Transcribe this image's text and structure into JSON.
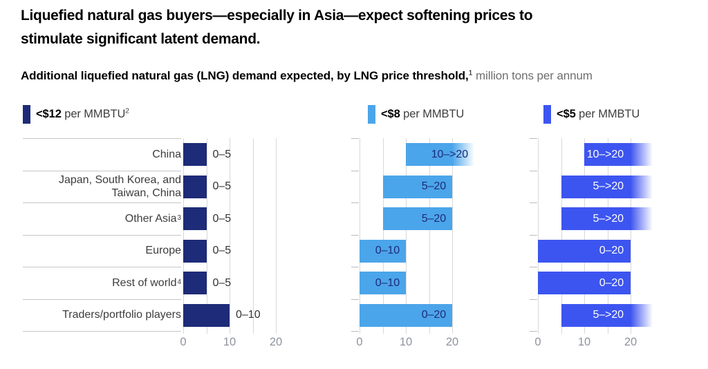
{
  "header": {
    "title_lines": [
      "Liquefied natural gas buyers—especially in Asia—expect softening prices to",
      "stimulate significant latent demand."
    ],
    "subtitle": {
      "bold": "Additional liquefied natural gas (LNG) demand expected, by LNG price threshold,",
      "sup": "1",
      "rest": " million tons per annum"
    }
  },
  "chart_data": {
    "type": "bar",
    "orientation": "horizontal",
    "unit": "million tons per annum",
    "x_ticks": [
      0,
      10,
      20
    ],
    "x_grid_step": 5,
    "x_max": 20,
    "grid": true,
    "categories": [
      {
        "label": "China",
        "sup": ""
      },
      {
        "label": "Japan, South Korea, and Taiwan, China",
        "sup": ""
      },
      {
        "label": "Other Asia",
        "sup": "3"
      },
      {
        "label": "Europe",
        "sup": ""
      },
      {
        "label": "Rest of world",
        "sup": "4"
      },
      {
        "label": "Traders/portfolio players",
        "sup": ""
      }
    ],
    "series": [
      {
        "name": "<$12 per MMBTU",
        "legend_bold": "<$12",
        "legend_rest": " per MMBTU",
        "legend_sup": "2",
        "color": "#1E2B78",
        "label_color": "#333333",
        "label_position": "outside",
        "bars": [
          {
            "from": 0,
            "to": 5,
            "open_ended": false,
            "label": "0–5"
          },
          {
            "from": 0,
            "to": 5,
            "open_ended": false,
            "label": "0–5"
          },
          {
            "from": 0,
            "to": 5,
            "open_ended": false,
            "label": "0–5"
          },
          {
            "from": 0,
            "to": 5,
            "open_ended": false,
            "label": "0–5"
          },
          {
            "from": 0,
            "to": 5,
            "open_ended": false,
            "label": "0–5"
          },
          {
            "from": 0,
            "to": 10,
            "open_ended": false,
            "label": "0–10"
          }
        ]
      },
      {
        "name": "<$8 per MMBTU",
        "legend_bold": "<$8",
        "legend_rest": " per MMBTU",
        "legend_sup": "",
        "color": "#4BA5EA",
        "label_color": "#1E2B78",
        "label_position": "inside",
        "bars": [
          {
            "from": 10,
            "to": 20,
            "open_ended": true,
            "label": "10–>20"
          },
          {
            "from": 5,
            "to": 20,
            "open_ended": false,
            "label": "5–20"
          },
          {
            "from": 5,
            "to": 20,
            "open_ended": false,
            "label": "5–20"
          },
          {
            "from": 0,
            "to": 10,
            "open_ended": false,
            "label": "0–10"
          },
          {
            "from": 0,
            "to": 10,
            "open_ended": false,
            "label": "0–10"
          },
          {
            "from": 0,
            "to": 20,
            "open_ended": false,
            "label": "0–20"
          }
        ]
      },
      {
        "name": "<$5 per MMBTU",
        "legend_bold": "<$5",
        "legend_rest": " per MMBTU",
        "legend_sup": "",
        "color": "#3D55F0",
        "label_color": "#FFFFFF",
        "label_position": "inside",
        "bars": [
          {
            "from": 10,
            "to": 20,
            "open_ended": true,
            "label": "10–>20"
          },
          {
            "from": 5,
            "to": 20,
            "open_ended": true,
            "label": "5–>20"
          },
          {
            "from": 5,
            "to": 20,
            "open_ended": true,
            "label": "5–>20"
          },
          {
            "from": 0,
            "to": 20,
            "open_ended": false,
            "label": "0–20"
          },
          {
            "from": 0,
            "to": 20,
            "open_ended": false,
            "label": "0–20"
          },
          {
            "from": 5,
            "to": 20,
            "open_ended": true,
            "label": "5–>20"
          }
        ]
      }
    ]
  }
}
